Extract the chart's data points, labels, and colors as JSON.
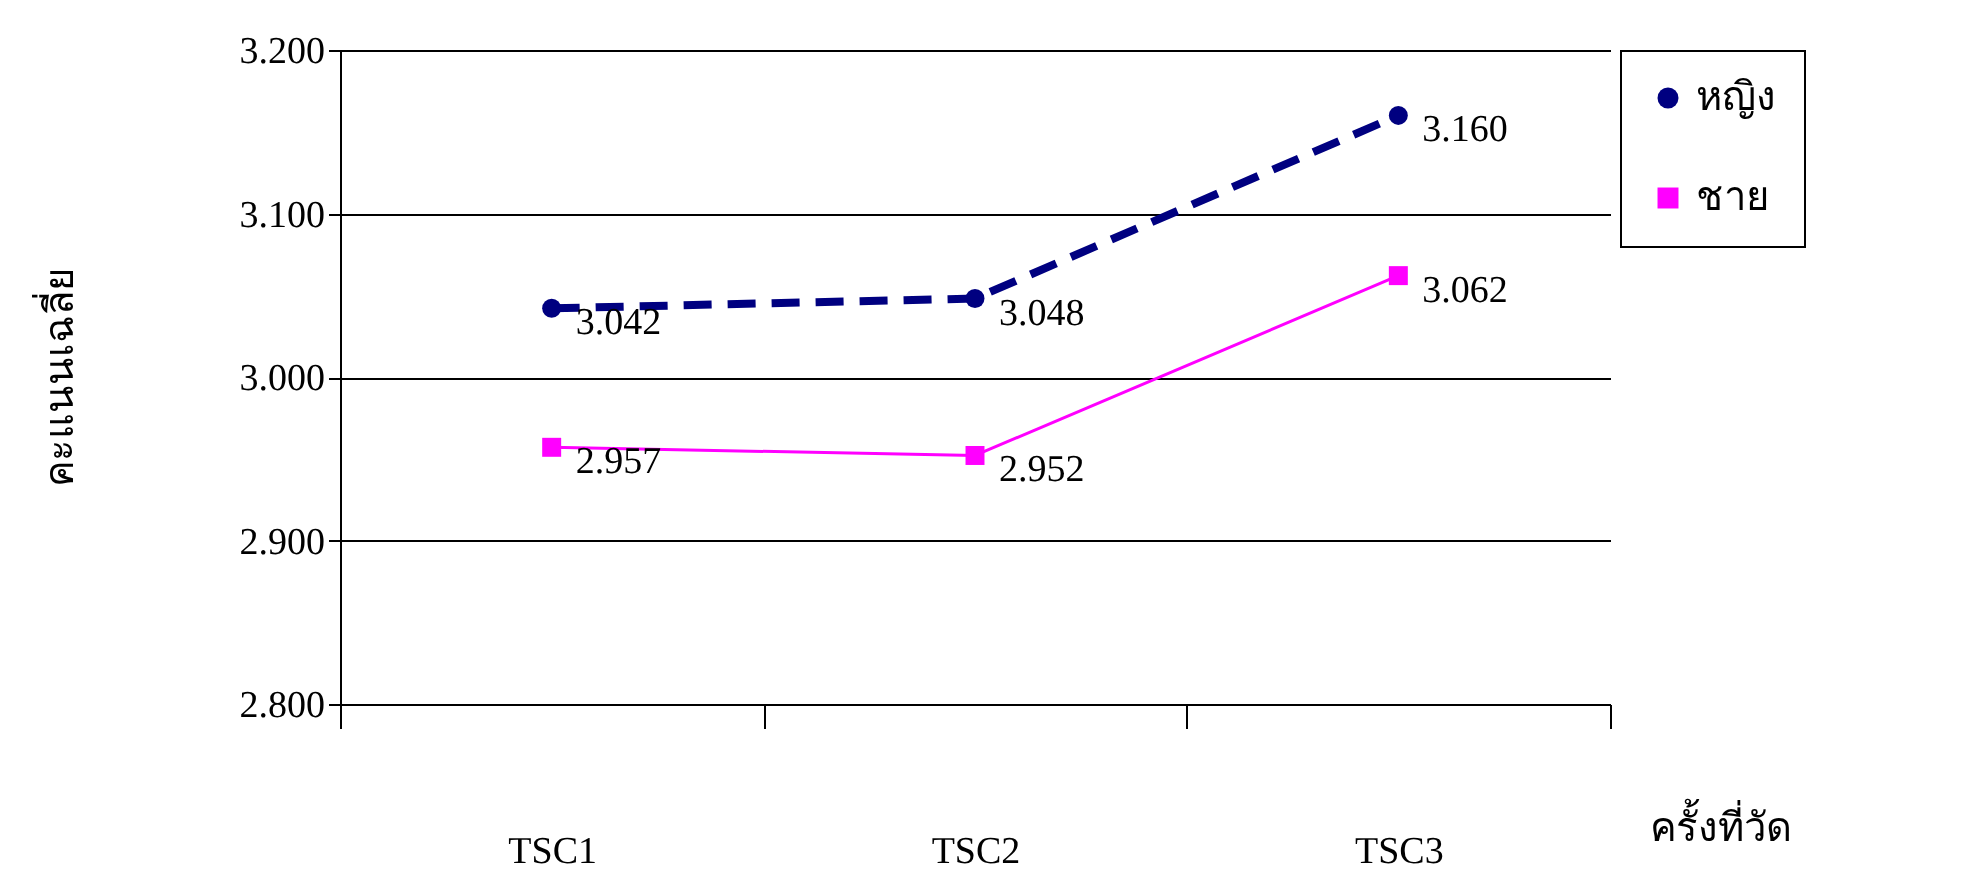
{
  "chart_data": {
    "type": "line",
    "xlabel": "ครั้งที่วัด",
    "ylabel": "คะแนนเฉลี่ย",
    "categories": [
      "TSC1",
      "TSC2",
      "TSC3"
    ],
    "series": [
      {
        "name": "หญิง",
        "color": "#000080",
        "line_style": "dashed",
        "marker": "circle",
        "values": [
          3.042,
          3.048,
          3.16
        ],
        "value_labels": [
          "3.042",
          "3.048",
          "3.160"
        ]
      },
      {
        "name": "ชาย",
        "color": "#ff00ff",
        "line_style": "solid",
        "marker": "square",
        "values": [
          2.957,
          2.952,
          3.062
        ],
        "value_labels": [
          "2.957",
          "2.952",
          "3.062"
        ]
      }
    ],
    "ylim": [
      2.8,
      3.2
    ],
    "yticks": [
      {
        "value": 2.8,
        "label": "2.800"
      },
      {
        "value": 2.9,
        "label": "2.900"
      },
      {
        "value": 3.0,
        "label": "3.000"
      },
      {
        "value": 3.1,
        "label": "3.100"
      },
      {
        "value": 3.2,
        "label": "3.200"
      }
    ],
    "grid": "y",
    "legend": "right"
  }
}
